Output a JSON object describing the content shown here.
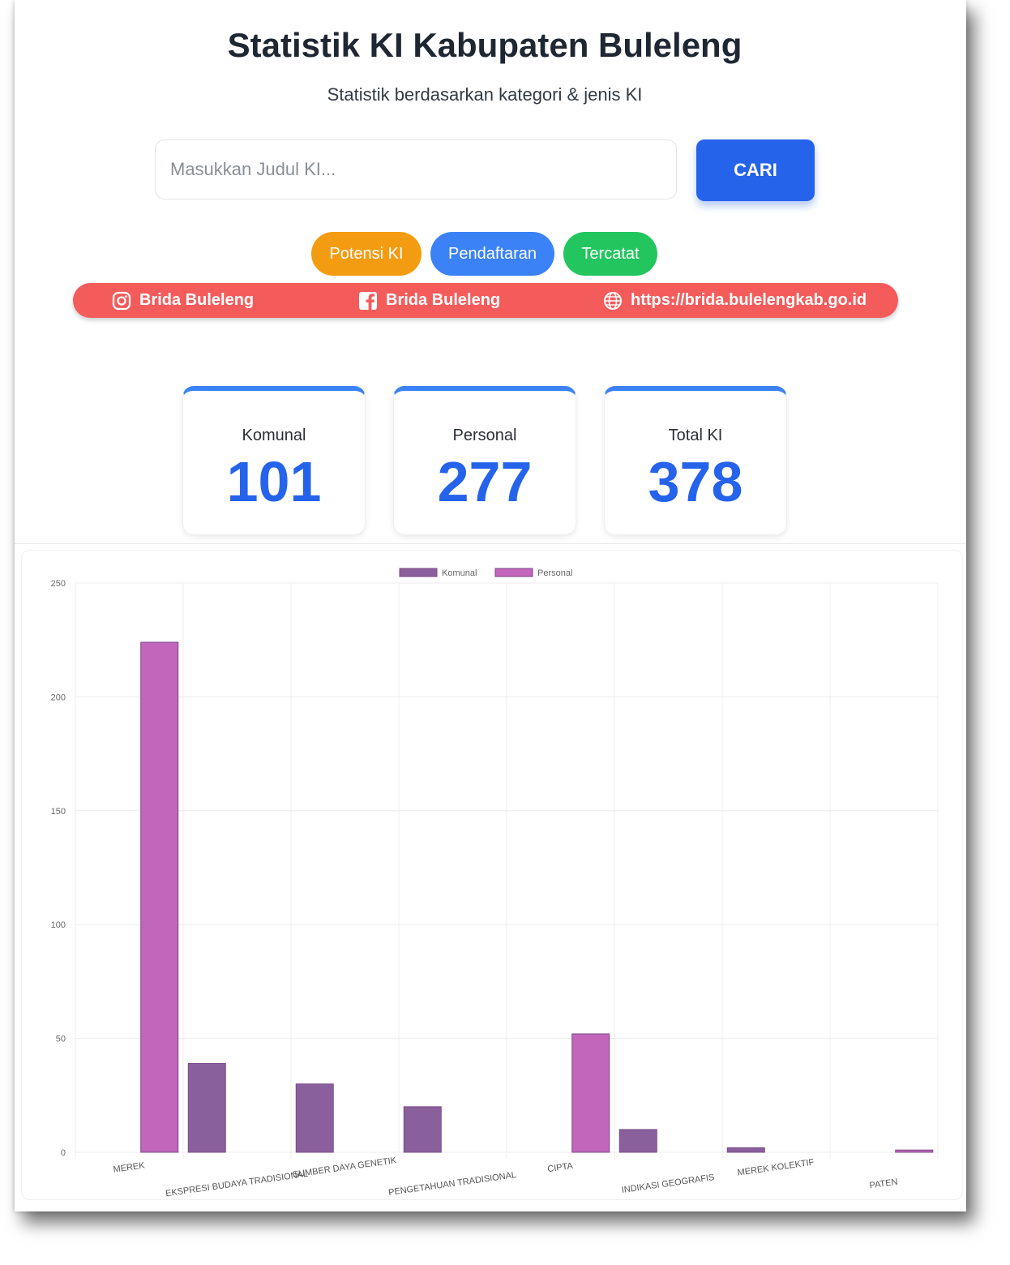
{
  "header": {
    "title": "Statistik KI Kabupaten Buleleng",
    "subtitle": "Statistik berdasarkan kategori & jenis KI"
  },
  "search": {
    "placeholder": "Masukkan Judul KI...",
    "button_label": "CARI"
  },
  "filters": [
    {
      "label": "Potensi KI",
      "color": "#f39c12"
    },
    {
      "label": "Pendaftaran",
      "color": "#3b82f6"
    },
    {
      "label": "Tercatat",
      "color": "#22c55e"
    }
  ],
  "social": {
    "instagram": "Brida Buleleng",
    "facebook": "Brida Buleleng",
    "website": "https://brida.bulelengkab.go.id",
    "bar_color": "#f45b5b"
  },
  "stats": [
    {
      "label": "Komunal",
      "value": "101"
    },
    {
      "label": "Personal",
      "value": "277"
    },
    {
      "label": "Total KI",
      "value": "378"
    }
  ],
  "chart_data": {
    "type": "bar",
    "categories": [
      "MEREK",
      "EKSPRESI BUDAYA TRADISIONAL",
      "SUMBER DAYA GENETIK",
      "PENGETAHUAN TRADISIONAL",
      "CIPTA",
      "INDIKASI GEOGRAFIS",
      "MEREK KOLEKTIF",
      "PATEN"
    ],
    "series": [
      {
        "name": "Komunal",
        "color": "#8a609c",
        "values": [
          0,
          39,
          30,
          20,
          0,
          10,
          2,
          0
        ]
      },
      {
        "name": "Personal",
        "color": "#c166ba",
        "values": [
          224,
          0,
          0,
          0,
          52,
          0,
          0,
          1
        ]
      }
    ],
    "ylim": [
      0,
      250
    ],
    "yticks": [
      "0",
      "50",
      "100",
      "150",
      "200",
      "250"
    ],
    "grid": true,
    "legend_position": "top"
  }
}
